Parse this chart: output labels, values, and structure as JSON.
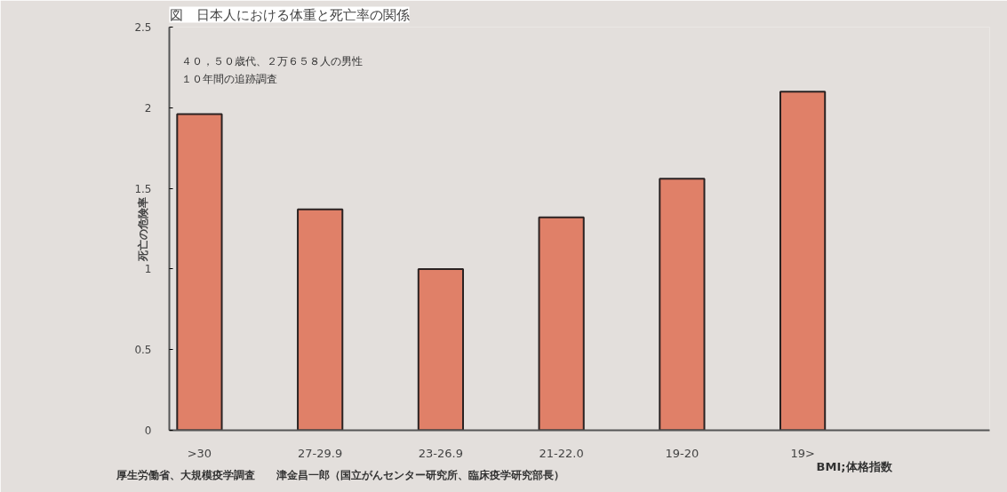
{
  "chart_data": {
    "type": "bar",
    "title": "図　日本人における体重と死亡率の関係",
    "categories": [
      ">30",
      "27-29.9",
      "23-26.9",
      "21-22.0",
      "19-20",
      "19>"
    ],
    "values": [
      1.96,
      1.37,
      1.0,
      1.32,
      1.56,
      2.1
    ],
    "color": "#e08068",
    "xlabel": "BMI;体格指数",
    "ylabel": "死亡の危険率",
    "ylim": [
      0,
      2.5
    ],
    "yticks": [
      0,
      0.5,
      1,
      1.5,
      2,
      2.5
    ],
    "annotations": [
      "４０，５０歳代、２万６５８人の男性",
      "１０年間の追跡調査",
      "厚生労働省、大規模疫学調査　　津金昌一郎（国立がんセンター研究所、臨床疫学研究部長）"
    ],
    "grid": false
  }
}
